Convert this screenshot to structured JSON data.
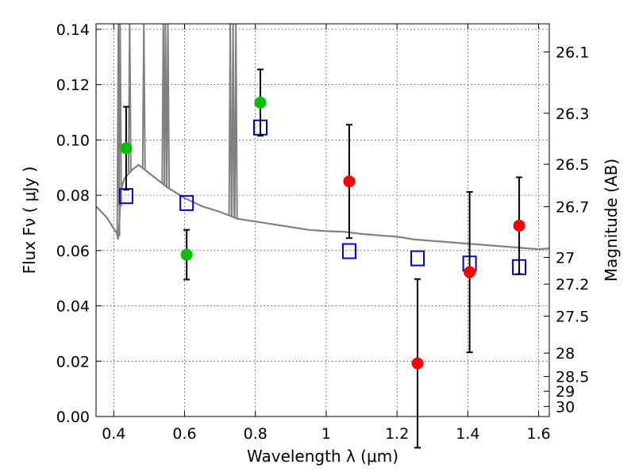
{
  "chart_data": {
    "type": "scatter",
    "xlabel": "Wavelength  λ (μm)",
    "ylabel": "Flux  Fν  ( μJy )",
    "y2label": "Magnitude (AB)",
    "xlim": [
      0.35,
      1.63
    ],
    "ylim": [
      0.0,
      0.142
    ],
    "grid": true,
    "x_ticks": [
      {
        "value": 0.4,
        "label": "0.4"
      },
      {
        "value": 0.6,
        "label": "0.6"
      },
      {
        "value": 0.8,
        "label": "0.8"
      },
      {
        "value": 1.0,
        "label": "1"
      },
      {
        "value": 1.2,
        "label": "1.2"
      },
      {
        "value": 1.4,
        "label": "1.4"
      },
      {
        "value": 1.6,
        "label": "1.6"
      }
    ],
    "y_ticks": [
      {
        "value": 0.0,
        "label": "0.00"
      },
      {
        "value": 0.02,
        "label": "0.02"
      },
      {
        "value": 0.04,
        "label": "0.04"
      },
      {
        "value": 0.06,
        "label": "0.06"
      },
      {
        "value": 0.08,
        "label": "0.08"
      },
      {
        "value": 0.1,
        "label": "0.10"
      },
      {
        "value": 0.12,
        "label": "0.12"
      },
      {
        "value": 0.14,
        "label": "0.14"
      }
    ],
    "magnitude_ticks": [
      "26.1",
      "26.3",
      "26.5",
      "26.7",
      "27",
      "27.2",
      "27.5",
      "28",
      "28.5",
      "29",
      "30"
    ],
    "series": [
      {
        "name": "observed (green)",
        "color": "#00c000",
        "marker": "circle",
        "points": [
          {
            "x": 0.435,
            "y": 0.097,
            "yerr_low": 0.015,
            "yerr_high": 0.015
          },
          {
            "x": 0.606,
            "y": 0.0585,
            "yerr_low": 0.009,
            "yerr_high": 0.009
          },
          {
            "x": 0.814,
            "y": 0.1135,
            "yerr_low": 0.012,
            "yerr_high": 0.012
          }
        ]
      },
      {
        "name": "observed (red)",
        "color": "#ff0000",
        "marker": "circle",
        "points": [
          {
            "x": 1.065,
            "y": 0.085,
            "yerr_low": 0.0205,
            "yerr_high": 0.0205
          },
          {
            "x": 1.258,
            "y": 0.0192,
            "yerr_low": 0.0305,
            "yerr_high": 0.0305
          },
          {
            "x": 1.405,
            "y": 0.0522,
            "yerr_low": 0.029,
            "yerr_high": 0.029
          },
          {
            "x": 1.545,
            "y": 0.069,
            "yerr_low": 0.0175,
            "yerr_high": 0.0175
          }
        ]
      },
      {
        "name": "model photometry",
        "color": "#0000cc",
        "marker": "open-square",
        "points": [
          {
            "x": 0.435,
            "y": 0.0797
          },
          {
            "x": 0.606,
            "y": 0.0772
          },
          {
            "x": 0.814,
            "y": 0.1045
          },
          {
            "x": 1.065,
            "y": 0.0598
          },
          {
            "x": 1.258,
            "y": 0.0572
          },
          {
            "x": 1.405,
            "y": 0.0553
          },
          {
            "x": 1.545,
            "y": 0.054
          }
        ]
      },
      {
        "name": "model spectrum",
        "color": "#808080",
        "marker": "line",
        "x": [
          0.35,
          0.38,
          0.4,
          0.41,
          0.412,
          0.414,
          0.416,
          0.42,
          0.43,
          0.45,
          0.47,
          0.5,
          0.55,
          0.6,
          0.65,
          0.7,
          0.75,
          0.8,
          0.85,
          0.9,
          0.95,
          1.0,
          1.05,
          1.1,
          1.15,
          1.2,
          1.25,
          1.3,
          1.35,
          1.4,
          1.45,
          1.5,
          1.55,
          1.6,
          1.63
        ],
        "y": [
          0.076,
          0.072,
          0.068,
          0.066,
          0.064,
          0.0665,
          0.07,
          0.082,
          0.086,
          0.089,
          0.091,
          0.088,
          0.083,
          0.079,
          0.076,
          0.074,
          0.0715,
          0.0705,
          0.0695,
          0.0685,
          0.0675,
          0.067,
          0.0668,
          0.066,
          0.0655,
          0.065,
          0.064,
          0.0635,
          0.063,
          0.0625,
          0.062,
          0.0615,
          0.061,
          0.0605,
          0.0608
        ],
        "emission_lines": [
          {
            "x": 0.413,
            "y": 0.142
          },
          {
            "x": 0.418,
            "y": 0.142
          },
          {
            "x": 0.445,
            "y": 0.142
          },
          {
            "x": 0.485,
            "y": 0.142
          },
          {
            "x": 0.54,
            "y": 0.142
          },
          {
            "x": 0.546,
            "y": 0.142
          },
          {
            "x": 0.553,
            "y": 0.142
          },
          {
            "x": 0.729,
            "y": 0.142
          },
          {
            "x": 0.737,
            "y": 0.142
          },
          {
            "x": 0.745,
            "y": 0.142
          }
        ]
      }
    ]
  }
}
